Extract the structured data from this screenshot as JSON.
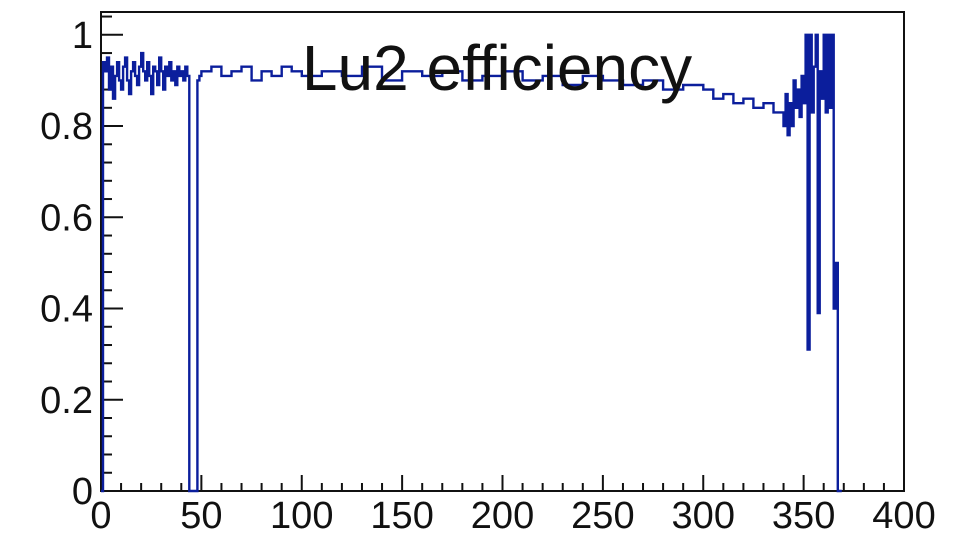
{
  "chart_data": {
    "type": "line",
    "title": "Lu2 efficiency",
    "xlabel": "",
    "ylabel": "",
    "xlim": [
      0,
      400
    ],
    "ylim": [
      0,
      1.05
    ],
    "x_ticks": [
      0,
      50,
      100,
      150,
      200,
      250,
      300,
      350,
      400
    ],
    "y_ticks": [
      0,
      0.2,
      0.4,
      0.6,
      0.8,
      1
    ],
    "x_tick_labels": [
      "0",
      "50",
      "100",
      "150",
      "200",
      "250",
      "300",
      "350",
      "400"
    ],
    "y_tick_labels": [
      "0",
      "0.2",
      "0.4",
      "0.6",
      "0.8",
      "1"
    ],
    "grid": false,
    "line_color": "#0b1e9c",
    "series": [
      {
        "bin_width": 1,
        "x": [
          0,
          1,
          2,
          3,
          4,
          5,
          6,
          7,
          8,
          9,
          10,
          11,
          12,
          13,
          14,
          15,
          16,
          17,
          18,
          19,
          20,
          21,
          22,
          23,
          24,
          25,
          26,
          27,
          28,
          29,
          30,
          31,
          32,
          33,
          34,
          35,
          36,
          37,
          38,
          39,
          40,
          41,
          42,
          43,
          44,
          45,
          46,
          47,
          48,
          49,
          50,
          55,
          60,
          65,
          70,
          75,
          80,
          85,
          90,
          95,
          100,
          110,
          120,
          130,
          140,
          150,
          160,
          170,
          180,
          190,
          200,
          210,
          220,
          230,
          240,
          250,
          260,
          270,
          280,
          290,
          300,
          305,
          310,
          315,
          320,
          325,
          330,
          335,
          340,
          341,
          342,
          343,
          344,
          345,
          346,
          347,
          348,
          349,
          350,
          351,
          352,
          353,
          354,
          355,
          356,
          357,
          358,
          359,
          360,
          361,
          362,
          363,
          364,
          365,
          366,
          367,
          368
        ],
        "values": [
          0.0,
          0.94,
          0.92,
          0.95,
          0.88,
          0.93,
          0.86,
          0.91,
          0.94,
          0.9,
          0.88,
          0.93,
          0.95,
          0.9,
          0.87,
          0.92,
          0.94,
          0.91,
          0.89,
          0.93,
          0.96,
          0.92,
          0.9,
          0.94,
          0.91,
          0.87,
          0.93,
          0.92,
          0.89,
          0.95,
          0.92,
          0.88,
          0.93,
          0.91,
          0.94,
          0.9,
          0.92,
          0.89,
          0.93,
          0.91,
          0.92,
          0.9,
          0.93,
          0.91,
          0.0,
          0.0,
          0.0,
          0.0,
          0.9,
          0.91,
          0.92,
          0.93,
          0.91,
          0.92,
          0.93,
          0.9,
          0.92,
          0.91,
          0.93,
          0.92,
          0.91,
          0.92,
          0.91,
          0.93,
          0.9,
          0.92,
          0.91,
          0.92,
          0.9,
          0.91,
          0.92,
          0.9,
          0.91,
          0.89,
          0.91,
          0.9,
          0.89,
          0.9,
          0.88,
          0.89,
          0.88,
          0.86,
          0.87,
          0.85,
          0.86,
          0.84,
          0.85,
          0.83,
          0.8,
          0.87,
          0.78,
          0.85,
          0.8,
          0.9,
          0.84,
          0.88,
          0.82,
          0.91,
          0.85,
          1.0,
          0.31,
          1.0,
          0.83,
          0.93,
          1.0,
          0.39,
          0.92,
          0.86,
          1.0,
          0.83,
          1.0,
          0.84,
          1.0,
          0.4,
          0.5,
          0.0,
          0.0
        ]
      }
    ]
  }
}
